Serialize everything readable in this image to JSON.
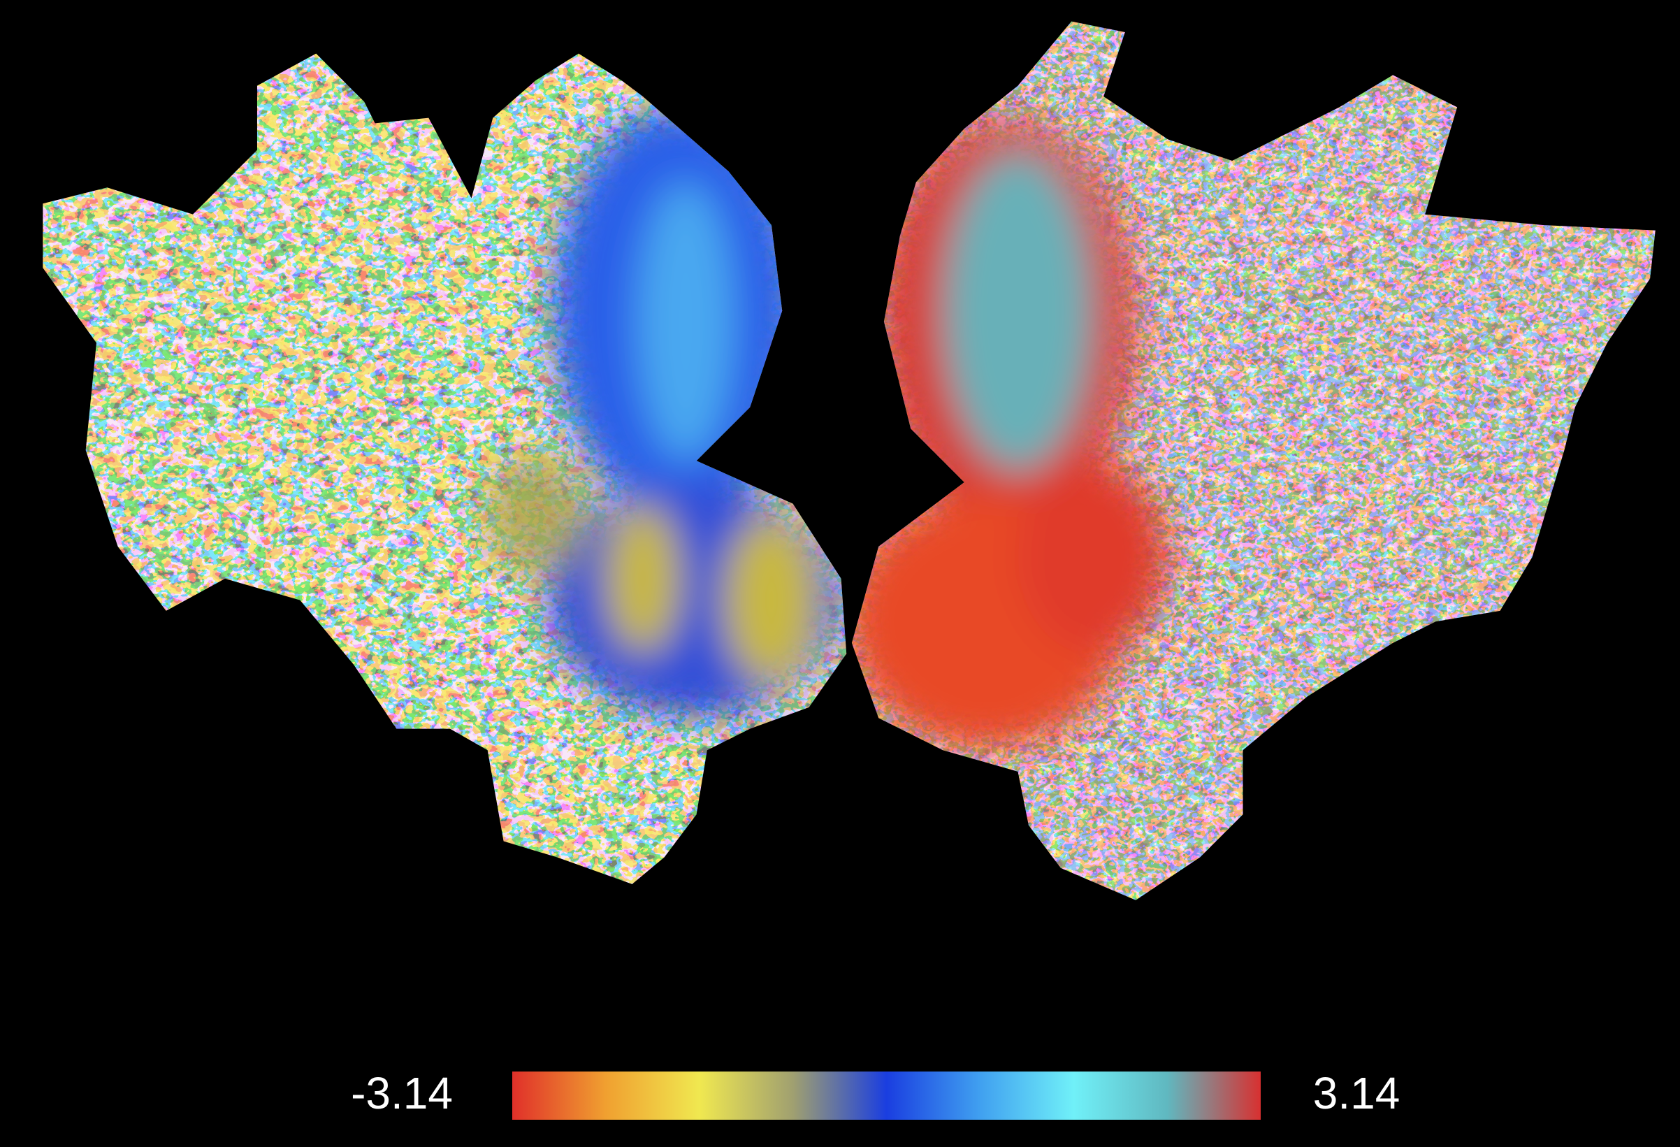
{
  "colorbar": {
    "min": -3.14,
    "max": 3.14,
    "colors": [
      "#e0302a",
      "#f0a030",
      "#f0e850",
      "#a0a070",
      "#1a3ee0",
      "#40a0f0",
      "#70f0f8",
      "#60b8c0",
      "#d83030"
    ]
  }
}
